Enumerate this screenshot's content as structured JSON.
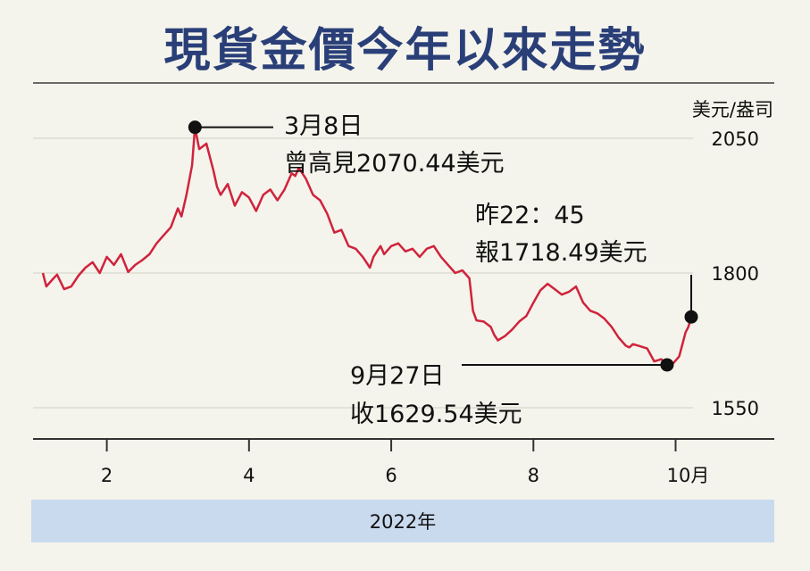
{
  "chart_data": {
    "type": "line",
    "title": "現貨金價今年以來走勢",
    "unit": "美元/盎司",
    "xlabel": "2022年",
    "x_ticks": [
      {
        "label": "2",
        "value": 2
      },
      {
        "label": "4",
        "value": 4
      },
      {
        "label": "6",
        "value": 6
      },
      {
        "label": "8",
        "value": 8
      },
      {
        "label": "10月",
        "value": 10
      }
    ],
    "xlim": [
      1,
      11.3
    ],
    "y_ticks": [
      {
        "label": "2050",
        "value": 2050
      },
      {
        "label": "1800",
        "value": 1800
      },
      {
        "label": "1550",
        "value": 1550
      }
    ],
    "ylim": [
      1550,
      2050
    ],
    "grid": true,
    "series": [
      {
        "color": "#d0233c",
        "points": [
          [
            1.1,
            1800
          ],
          [
            1.15,
            1775
          ],
          [
            1.25,
            1790
          ],
          [
            1.3,
            1797
          ],
          [
            1.4,
            1770
          ],
          [
            1.5,
            1775
          ],
          [
            1.6,
            1795
          ],
          [
            1.7,
            1810
          ],
          [
            1.8,
            1820
          ],
          [
            1.9,
            1800
          ],
          [
            2.0,
            1830
          ],
          [
            2.1,
            1815
          ],
          [
            2.2,
            1835
          ],
          [
            2.3,
            1802
          ],
          [
            2.4,
            1815
          ],
          [
            2.5,
            1824
          ],
          [
            2.6,
            1835
          ],
          [
            2.7,
            1855
          ],
          [
            2.8,
            1870
          ],
          [
            2.9,
            1885
          ],
          [
            3.0,
            1920
          ],
          [
            3.05,
            1905
          ],
          [
            3.12,
            1945
          ],
          [
            3.2,
            2000
          ],
          [
            3.24,
            2070.44
          ],
          [
            3.3,
            2030
          ],
          [
            3.4,
            2040
          ],
          [
            3.5,
            1990
          ],
          [
            3.55,
            1960
          ],
          [
            3.6,
            1945
          ],
          [
            3.7,
            1965
          ],
          [
            3.8,
            1925
          ],
          [
            3.9,
            1950
          ],
          [
            4.0,
            1940
          ],
          [
            4.1,
            1915
          ],
          [
            4.2,
            1945
          ],
          [
            4.3,
            1955
          ],
          [
            4.4,
            1935
          ],
          [
            4.5,
            1955
          ],
          [
            4.6,
            1985
          ],
          [
            4.65,
            1980
          ],
          [
            4.7,
            1995
          ],
          [
            4.8,
            1975
          ],
          [
            4.9,
            1945
          ],
          [
            5.0,
            1935
          ],
          [
            5.1,
            1910
          ],
          [
            5.2,
            1875
          ],
          [
            5.3,
            1880
          ],
          [
            5.4,
            1850
          ],
          [
            5.5,
            1845
          ],
          [
            5.6,
            1830
          ],
          [
            5.7,
            1810
          ],
          [
            5.75,
            1830
          ],
          [
            5.8,
            1840
          ],
          [
            5.85,
            1850
          ],
          [
            5.9,
            1835
          ],
          [
            6.0,
            1850
          ],
          [
            6.1,
            1855
          ],
          [
            6.2,
            1840
          ],
          [
            6.3,
            1845
          ],
          [
            6.4,
            1830
          ],
          [
            6.5,
            1845
          ],
          [
            6.6,
            1850
          ],
          [
            6.7,
            1830
          ],
          [
            6.8,
            1815
          ],
          [
            6.9,
            1800
          ],
          [
            7.0,
            1805
          ],
          [
            7.1,
            1790
          ],
          [
            7.15,
            1730
          ],
          [
            7.2,
            1712
          ],
          [
            7.3,
            1710
          ],
          [
            7.4,
            1700
          ],
          [
            7.45,
            1685
          ],
          [
            7.5,
            1675
          ],
          [
            7.6,
            1683
          ],
          [
            7.7,
            1695
          ],
          [
            7.8,
            1710
          ],
          [
            7.9,
            1720
          ],
          [
            8.0,
            1745
          ],
          [
            8.1,
            1768
          ],
          [
            8.2,
            1780
          ],
          [
            8.3,
            1770
          ],
          [
            8.4,
            1760
          ],
          [
            8.5,
            1765
          ],
          [
            8.6,
            1775
          ],
          [
            8.7,
            1745
          ],
          [
            8.8,
            1730
          ],
          [
            8.9,
            1725
          ],
          [
            9.0,
            1715
          ],
          [
            9.1,
            1700
          ],
          [
            9.2,
            1680
          ],
          [
            9.3,
            1665
          ],
          [
            9.35,
            1662
          ],
          [
            9.4,
            1668
          ],
          [
            9.5,
            1664
          ],
          [
            9.6,
            1660
          ],
          [
            9.7,
            1636
          ],
          [
            9.8,
            1640
          ],
          [
            9.88,
            1629.54
          ],
          [
            9.95,
            1630
          ],
          [
            10.05,
            1645
          ],
          [
            10.1,
            1670
          ],
          [
            10.14,
            1690
          ],
          [
            10.18,
            1700
          ],
          [
            10.22,
            1718.49
          ]
        ]
      }
    ],
    "annotations": [
      {
        "point": [
          3.24,
          2070.44
        ],
        "lines": [
          "3月8日",
          "曾高見2070.44美元"
        ]
      },
      {
        "point": [
          10.22,
          1718.49
        ],
        "lines": [
          "昨22：45",
          "報1718.49美元"
        ]
      },
      {
        "point": [
          9.88,
          1629.54
        ],
        "lines": [
          "9月27日",
          "收1629.54美元"
        ]
      }
    ]
  }
}
